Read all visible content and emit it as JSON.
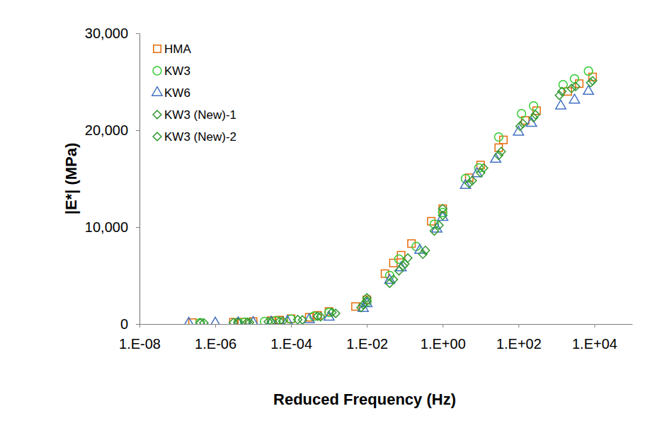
{
  "chart_data": {
    "type": "scatter",
    "x_label": "Reduced Frequency (Hz)",
    "y_label": "|E*| (MPa)",
    "log": "x",
    "legend": "upper left",
    "grid": false,
    "xlim": [
      1e-08,
      100000.0
    ],
    "xticks": [
      {
        "value": 1e-08,
        "label": "1.E-08"
      },
      {
        "value": 1e-06,
        "label": "1.E-06"
      },
      {
        "value": 0.0001,
        "label": "1.E-04"
      },
      {
        "value": 0.01,
        "label": "1.E-02"
      },
      {
        "value": 1,
        "label": "1.E+00"
      },
      {
        "value": 100,
        "label": "1.E+02"
      },
      {
        "value": 10000,
        "label": "1.E+04"
      }
    ],
    "ylim": [
      0,
      30000
    ],
    "yticks": [
      0,
      {
        "value": 10000,
        "label": "10,000"
      },
      {
        "value": 20000,
        "label": "20,000"
      },
      {
        "value": 30000,
        "label": "30,000"
      }
    ],
    "series": [
      {
        "name": "HMA",
        "color": "#e46c0a",
        "marker": "square",
        "x": [
          2.5e-07,
          3e-06,
          5e-06,
          1e-05,
          3e-05,
          5e-05,
          0.0001,
          0.0003,
          0.0005,
          0.001,
          0.005,
          0.01,
          0.03,
          0.05,
          0.08,
          0.15,
          0.5,
          1,
          5,
          10,
          30,
          40,
          150,
          300,
          2000,
          4000,
          9000
        ],
        "values": [
          150,
          180,
          200,
          250,
          350,
          400,
          550,
          700,
          900,
          1300,
          1800,
          2500,
          5200,
          6300,
          7100,
          8300,
          10600,
          11900,
          15100,
          16400,
          18200,
          19000,
          21000,
          22000,
          24000,
          24800,
          25500
        ]
      },
      {
        "name": "KW3",
        "color": "#33cc33",
        "marker": "circle",
        "x": [
          4e-07,
          4e-06,
          6e-06,
          2e-05,
          4e-05,
          0.0001,
          0.0004,
          0.001,
          0.01,
          0.04,
          0.07,
          0.2,
          0.6,
          1,
          4,
          9,
          30,
          120,
          250,
          1500,
          3000,
          7000
        ],
        "values": [
          130,
          170,
          190,
          260,
          330,
          500,
          800,
          1200,
          2300,
          5000,
          6700,
          8000,
          10300,
          11500,
          15000,
          16100,
          19300,
          21700,
          22500,
          24700,
          25300,
          26100
        ]
      },
      {
        "name": "KW6",
        "color": "#4472c4",
        "marker": "triangle",
        "x": [
          2e-07,
          1e-06,
          4e-06,
          1e-05,
          3e-05,
          8e-05,
          0.0003,
          0.001,
          0.008,
          0.01,
          0.04,
          0.08,
          0.25,
          0.7,
          1,
          4,
          8,
          25,
          100,
          220,
          1300,
          3000,
          7000
        ],
        "values": [
          80,
          100,
          130,
          150,
          200,
          260,
          450,
          700,
          1600,
          2100,
          4500,
          5800,
          7600,
          9800,
          11000,
          14300,
          15500,
          17000,
          19800,
          20700,
          22500,
          23100,
          24000
        ]
      },
      {
        "name": "KW3 (New)-1",
        "color": "#339933",
        "marker": "diamond",
        "x": [
          4e-07,
          4e-06,
          8e-06,
          3e-05,
          6e-05,
          0.0002,
          0.0006,
          0.0015,
          0.007,
          0.01,
          0.04,
          0.07,
          0.1,
          0.3,
          0.6,
          1,
          5,
          10,
          30,
          110,
          250,
          1200,
          2500,
          8000
        ],
        "values": [
          110,
          140,
          170,
          230,
          290,
          420,
          750,
          1100,
          1700,
          2400,
          4200,
          5500,
          6200,
          7200,
          9600,
          11200,
          14500,
          15600,
          17400,
          20400,
          21300,
          23600,
          24300,
          24900
        ]
      },
      {
        "name": "KW3 (New)-2",
        "color": "#339933",
        "marker": "diamond",
        "x": [
          5e-07,
          3e-06,
          7e-06,
          2.5e-05,
          5e-05,
          0.00015,
          0.0005,
          0.0012,
          0.008,
          0.01,
          0.05,
          0.09,
          0.12,
          0.35,
          0.8,
          1,
          6,
          12,
          35,
          130,
          280,
          1400,
          3200,
          9000
        ],
        "values": [
          120,
          150,
          180,
          240,
          300,
          450,
          800,
          1200,
          2000,
          2700,
          4600,
          6000,
          6800,
          7600,
          10200,
          11900,
          14800,
          16100,
          17800,
          20700,
          21600,
          24000,
          24500,
          25100
        ]
      }
    ]
  }
}
